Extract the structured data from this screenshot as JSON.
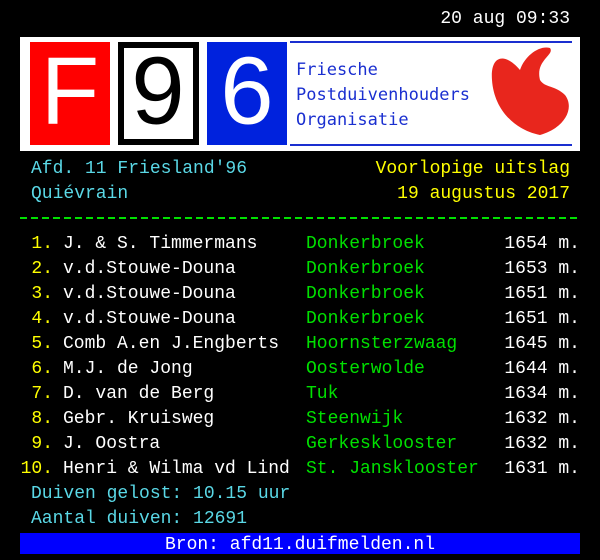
{
  "clock": "20 aug 09:33",
  "logo": {
    "letters": [
      "F",
      "9",
      "6"
    ],
    "lines": [
      "Friesche",
      "Postduivenhouders",
      "Organisatie"
    ]
  },
  "header": {
    "department": "Afd. 11 Friesland'96",
    "status": "Voorlopige uitslag",
    "location": "Quiévrain",
    "date": "19 augustus 2017"
  },
  "results": [
    {
      "rank": "1.",
      "name": "J. & S. Timmermans",
      "place": "Donkerbroek",
      "distance": "1654 m."
    },
    {
      "rank": "2.",
      "name": "v.d.Stouwe-Douna",
      "place": "Donkerbroek",
      "distance": "1653 m."
    },
    {
      "rank": "3.",
      "name": "v.d.Stouwe-Douna",
      "place": "Donkerbroek",
      "distance": "1651 m."
    },
    {
      "rank": "4.",
      "name": "v.d.Stouwe-Douna",
      "place": "Donkerbroek",
      "distance": "1651 m."
    },
    {
      "rank": "5.",
      "name": "Comb A.en J.Engberts",
      "place": "Hoornsterzwaag",
      "distance": "1645 m."
    },
    {
      "rank": "6.",
      "name": "M.J. de Jong",
      "place": "Oosterwolde",
      "distance": "1644 m."
    },
    {
      "rank": "7.",
      "name": "D. van de Berg",
      "place": "Tuk",
      "distance": "1634 m."
    },
    {
      "rank": "8.",
      "name": "Gebr. Kruisweg",
      "place": "Steenwijk",
      "distance": "1632 m."
    },
    {
      "rank": "9.",
      "name": "J. Oostra",
      "place": "Gerkesklooster",
      "distance": "1632 m."
    },
    {
      "rank": "10.",
      "name": "Henri & Wilma vd Lind",
      "place": "St. Jansklooster",
      "distance": "1631 m."
    }
  ],
  "footer": {
    "released": "Duiven gelost: 10.15 uur",
    "count": "Aantal duiven: 12691",
    "source": "Bron: afd11.duifmelden.nl"
  }
}
